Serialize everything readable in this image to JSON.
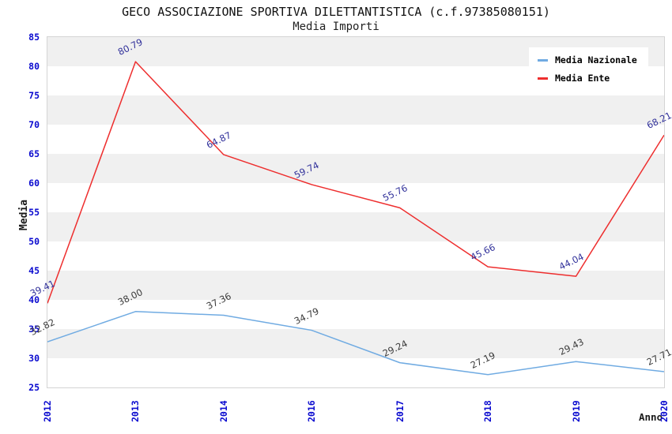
{
  "header": {
    "title": "GECO ASSOCIAZIONE SPORTIVA DILETTANTISTICA (c.f.97385080151)",
    "subtitle": "Media Importi"
  },
  "chart_data": {
    "type": "line",
    "title": "GECO ASSOCIAZIONE SPORTIVA DILETTANTISTICA (c.f.97385080151)",
    "subtitle": "Media Importi",
    "categories": [
      "2012",
      "2013",
      "2014",
      "2016",
      "2017",
      "2018",
      "2019",
      "2020"
    ],
    "series": [
      {
        "name": "Media Nazionale",
        "color": "#70abe2",
        "label_color": "#3b3b3b",
        "values": [
          32.82,
          38.0,
          37.36,
          34.79,
          29.24,
          27.19,
          29.43,
          27.71
        ]
      },
      {
        "name": "Media Ente",
        "color": "#ee2e2e",
        "label_color": "#32329b",
        "values": [
          39.41,
          80.79,
          64.87,
          59.74,
          55.76,
          45.66,
          44.04,
          68.21
        ]
      }
    ],
    "xlabel": "Anno",
    "ylabel": "Media",
    "ylim": [
      25,
      85
    ],
    "ytick_step": 5,
    "grid": "alternating-horizontal-bands",
    "band_colors": [
      "#f0f0f0",
      "#ffffff"
    ],
    "plot_border_color": "#d4d4d4",
    "axis_tick_color": "#0a0acf",
    "legend_position": "top-right",
    "value_labels_decimals": 2
  }
}
